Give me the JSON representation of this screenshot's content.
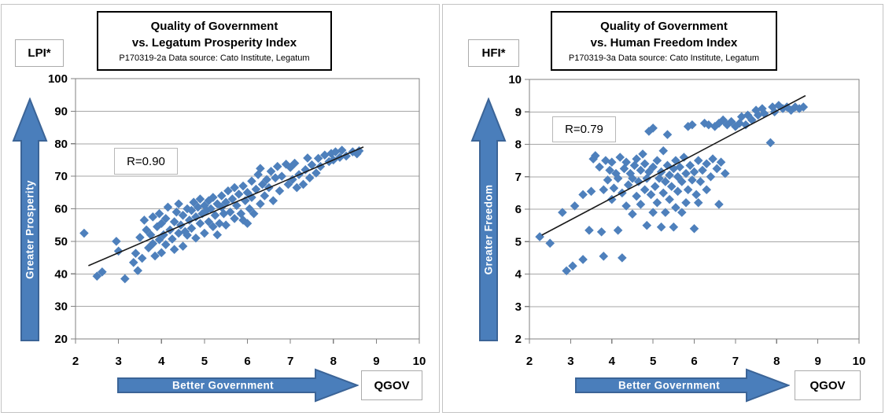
{
  "colors": {
    "marker": "#4E80BC",
    "trendline": "#1a1a1a",
    "gridline": "#a6a6a6",
    "plot_border": "#808080",
    "arrow_fill": "#4A7EBB",
    "arrow_border": "#3B6497",
    "arrow_text": "#ffffff"
  },
  "chart_data": [
    {
      "type": "scatter",
      "title": "Quality of Government vs. Legatum Prosperity Index",
      "title_line1": "Quality of Government",
      "title_line2": "vs. Legatum Prosperity Index",
      "subtitle": "P170319-2a Data source: Cato Institute, Legatum",
      "y_axis_unit_label": "LPI*",
      "x_axis_unit_label": "QGOV",
      "y_arrow_label": "Greater Prosperity",
      "x_arrow_label": "Better Government",
      "annotation": "R=0.90",
      "correlation": 0.9,
      "xlim": [
        2,
        10
      ],
      "ylim": [
        20,
        100
      ],
      "x_ticks": [
        2,
        3,
        4,
        5,
        6,
        7,
        8,
        9,
        10
      ],
      "y_ticks": [
        20,
        30,
        40,
        50,
        60,
        70,
        80,
        90,
        100
      ],
      "grid": "horizontal-only",
      "legend": "none",
      "trendline": {
        "x1": 2.3,
        "y1": 42.5,
        "x2": 8.7,
        "y2": 79.0
      },
      "points": [
        [
          2.2,
          52.5
        ],
        [
          2.5,
          39.3
        ],
        [
          2.62,
          40.6
        ],
        [
          2.95,
          50.0
        ],
        [
          3.0,
          47.0
        ],
        [
          3.15,
          38.5
        ],
        [
          3.35,
          43.5
        ],
        [
          3.4,
          46.3
        ],
        [
          3.45,
          41.0
        ],
        [
          3.5,
          51.2
        ],
        [
          3.55,
          44.8
        ],
        [
          3.6,
          56.5
        ],
        [
          3.65,
          53.5
        ],
        [
          3.7,
          48.0
        ],
        [
          3.75,
          52.0
        ],
        [
          3.8,
          49.3
        ],
        [
          3.8,
          57.5
        ],
        [
          3.85,
          45.5
        ],
        [
          3.9,
          54.5
        ],
        [
          3.95,
          50.5
        ],
        [
          3.95,
          58.5
        ],
        [
          4.0,
          46.5
        ],
        [
          4.0,
          55.5
        ],
        [
          4.05,
          52.0
        ],
        [
          4.1,
          49.0
        ],
        [
          4.1,
          57.0
        ],
        [
          4.15,
          60.5
        ],
        [
          4.2,
          53.5
        ],
        [
          4.25,
          50.7
        ],
        [
          4.3,
          47.5
        ],
        [
          4.3,
          56.0
        ],
        [
          4.35,
          59.0
        ],
        [
          4.4,
          52.5
        ],
        [
          4.4,
          61.5
        ],
        [
          4.45,
          55.0
        ],
        [
          4.5,
          48.5
        ],
        [
          4.5,
          58.0
        ],
        [
          4.55,
          53.0
        ],
        [
          4.6,
          51.9
        ],
        [
          4.6,
          60.0
        ],
        [
          4.65,
          56.5
        ],
        [
          4.7,
          54.0
        ],
        [
          4.7,
          59.5
        ],
        [
          4.75,
          62.0
        ],
        [
          4.8,
          51.0
        ],
        [
          4.8,
          57.5
        ],
        [
          4.85,
          60.5
        ],
        [
          4.9,
          55.5
        ],
        [
          4.9,
          63.0
        ],
        [
          4.95,
          58.5
        ],
        [
          5.0,
          52.5
        ],
        [
          5.0,
          61.0
        ],
        [
          5.05,
          59.5
        ],
        [
          5.1,
          56.0
        ],
        [
          5.1,
          62.5
        ],
        [
          5.15,
          60.0
        ],
        [
          5.2,
          54.5
        ],
        [
          5.2,
          63.5
        ],
        [
          5.25,
          58.0
        ],
        [
          5.3,
          52.0
        ],
        [
          5.3,
          61.5
        ],
        [
          5.35,
          55.5
        ],
        [
          5.4,
          60.5
        ],
        [
          5.4,
          64.0
        ],
        [
          5.45,
          58.5
        ],
        [
          5.5,
          55.0
        ],
        [
          5.5,
          62.0
        ],
        [
          5.55,
          65.5
        ],
        [
          5.6,
          59.0
        ],
        [
          5.65,
          63.0
        ],
        [
          5.7,
          57.0
        ],
        [
          5.7,
          66.5
        ],
        [
          5.75,
          61.0
        ],
        [
          5.8,
          64.5
        ],
        [
          5.85,
          58.5
        ],
        [
          5.9,
          56.5
        ],
        [
          5.9,
          67.0
        ],
        [
          5.95,
          62.5
        ],
        [
          6.0,
          55.5
        ],
        [
          6.0,
          65.0
        ],
        [
          6.05,
          60.0
        ],
        [
          6.1,
          63.5
        ],
        [
          6.1,
          68.5
        ],
        [
          6.15,
          58.5
        ],
        [
          6.2,
          66.0
        ],
        [
          6.25,
          70.5
        ],
        [
          6.3,
          61.5
        ],
        [
          6.3,
          72.4
        ],
        [
          6.35,
          67.5
        ],
        [
          6.4,
          64.0
        ],
        [
          6.45,
          69.0
        ],
        [
          6.5,
          66.5
        ],
        [
          6.55,
          71.5
        ],
        [
          6.6,
          62.5
        ],
        [
          6.65,
          69.5
        ],
        [
          6.7,
          73.0
        ],
        [
          6.75,
          65.5
        ],
        [
          6.8,
          70.0
        ],
        [
          6.9,
          73.7
        ],
        [
          6.95,
          67.5
        ],
        [
          7.0,
          72.7
        ],
        [
          7.05,
          69.0
        ],
        [
          7.1,
          74.0
        ],
        [
          7.15,
          66.5
        ],
        [
          7.2,
          70.5
        ],
        [
          7.3,
          67.5
        ],
        [
          7.35,
          72.0
        ],
        [
          7.4,
          75.6
        ],
        [
          7.45,
          69.5
        ],
        [
          7.5,
          73.5
        ],
        [
          7.6,
          71.0
        ],
        [
          7.65,
          75.5
        ],
        [
          7.7,
          73.0
        ],
        [
          7.8,
          76.5
        ],
        [
          7.9,
          74.5
        ],
        [
          7.95,
          77.0
        ],
        [
          8.0,
          75.0
        ],
        [
          8.05,
          77.5
        ],
        [
          8.15,
          75.8
        ],
        [
          8.2,
          78.0
        ],
        [
          8.3,
          76.2
        ],
        [
          8.45,
          77.5
        ],
        [
          8.55,
          76.9
        ],
        [
          8.6,
          77.8
        ]
      ]
    },
    {
      "type": "scatter",
      "title": "Quality of Government vs. Human Freedom Index",
      "title_line1": "Quality of Government",
      "title_line2": "vs. Human Freedom Index",
      "subtitle": "P170319-3a Data source: Cato Institute, Legatum",
      "y_axis_unit_label": "HFI*",
      "x_axis_unit_label": "QGOV",
      "y_arrow_label": "Greater Freedom",
      "x_arrow_label": "Better Government",
      "annotation": "R=0.79",
      "correlation": 0.79,
      "xlim": [
        2,
        10
      ],
      "ylim": [
        2,
        10
      ],
      "x_ticks": [
        2,
        3,
        4,
        5,
        6,
        7,
        8,
        9,
        10
      ],
      "y_ticks": [
        2,
        3,
        4,
        5,
        6,
        7,
        8,
        9,
        10
      ],
      "grid": "horizontal-only",
      "legend": "none",
      "trendline": {
        "x1": 2.3,
        "y1": 5.2,
        "x2": 8.7,
        "y2": 9.5
      },
      "points": [
        [
          2.25,
          5.15
        ],
        [
          2.5,
          4.95
        ],
        [
          2.8,
          5.9
        ],
        [
          2.9,
          4.1
        ],
        [
          3.05,
          4.25
        ],
        [
          3.1,
          6.1
        ],
        [
          3.3,
          4.45
        ],
        [
          3.3,
          6.45
        ],
        [
          3.45,
          5.35
        ],
        [
          3.5,
          6.55
        ],
        [
          3.55,
          7.55
        ],
        [
          3.6,
          7.65
        ],
        [
          3.7,
          7.3
        ],
        [
          3.75,
          5.3
        ],
        [
          3.8,
          4.55
        ],
        [
          3.8,
          6.6
        ],
        [
          3.85,
          7.5
        ],
        [
          3.9,
          6.9
        ],
        [
          3.95,
          7.2
        ],
        [
          4.0,
          6.3
        ],
        [
          4.0,
          7.45
        ],
        [
          4.05,
          6.65
        ],
        [
          4.1,
          7.1
        ],
        [
          4.15,
          5.35
        ],
        [
          4.15,
          6.95
        ],
        [
          4.2,
          7.6
        ],
        [
          4.25,
          4.5
        ],
        [
          4.25,
          6.5
        ],
        [
          4.3,
          7.25
        ],
        [
          4.35,
          6.1
        ],
        [
          4.35,
          7.45
        ],
        [
          4.4,
          6.75
        ],
        [
          4.45,
          7.1
        ],
        [
          4.5,
          5.85
        ],
        [
          4.5,
          6.95
        ],
        [
          4.55,
          7.35
        ],
        [
          4.6,
          6.4
        ],
        [
          4.6,
          7.55
        ],
        [
          4.65,
          6.85
        ],
        [
          4.7,
          6.15
        ],
        [
          4.7,
          7.2
        ],
        [
          4.75,
          7.7
        ],
        [
          4.8,
          6.6
        ],
        [
          4.8,
          7.4
        ],
        [
          4.85,
          5.5
        ],
        [
          4.85,
          6.95
        ],
        [
          4.9,
          7.15
        ],
        [
          4.9,
          8.4
        ],
        [
          4.95,
          6.45
        ],
        [
          5.0,
          5.9
        ],
        [
          5.0,
          7.3
        ],
        [
          5.0,
          8.5
        ],
        [
          5.05,
          6.7
        ],
        [
          5.1,
          6.2
        ],
        [
          5.1,
          7.5
        ],
        [
          5.15,
          6.95
        ],
        [
          5.2,
          5.45
        ],
        [
          5.2,
          7.15
        ],
        [
          5.25,
          6.5
        ],
        [
          5.25,
          7.8
        ],
        [
          5.3,
          5.9
        ],
        [
          5.3,
          6.85
        ],
        [
          5.35,
          7.35
        ],
        [
          5.35,
          8.3
        ],
        [
          5.4,
          6.3
        ],
        [
          5.4,
          7.05
        ],
        [
          5.45,
          6.7
        ],
        [
          5.5,
          5.45
        ],
        [
          5.5,
          7.25
        ],
        [
          5.55,
          6.05
        ],
        [
          5.55,
          7.5
        ],
        [
          5.6,
          6.55
        ],
        [
          5.6,
          7.0
        ],
        [
          5.65,
          7.3
        ],
        [
          5.7,
          5.9
        ],
        [
          5.7,
          6.85
        ],
        [
          5.75,
          7.6
        ],
        [
          5.8,
          6.2
        ],
        [
          5.8,
          7.1
        ],
        [
          5.85,
          6.6
        ],
        [
          5.85,
          8.55
        ],
        [
          5.9,
          7.35
        ],
        [
          5.95,
          6.9
        ],
        [
          5.95,
          8.6
        ],
        [
          6.0,
          5.4
        ],
        [
          6.0,
          7.15
        ],
        [
          6.05,
          6.45
        ],
        [
          6.1,
          6.2
        ],
        [
          6.1,
          7.5
        ],
        [
          6.15,
          6.85
        ],
        [
          6.2,
          7.2
        ],
        [
          6.25,
          8.65
        ],
        [
          6.3,
          6.6
        ],
        [
          6.3,
          7.4
        ],
        [
          6.35,
          8.6
        ],
        [
          6.4,
          7.0
        ],
        [
          6.45,
          7.55
        ],
        [
          6.5,
          8.55
        ],
        [
          6.55,
          7.25
        ],
        [
          6.6,
          6.15
        ],
        [
          6.6,
          8.65
        ],
        [
          6.65,
          7.45
        ],
        [
          6.7,
          8.75
        ],
        [
          6.75,
          7.1
        ],
        [
          6.8,
          8.6
        ],
        [
          6.9,
          8.7
        ],
        [
          7.0,
          8.55
        ],
        [
          7.1,
          8.65
        ],
        [
          7.15,
          8.85
        ],
        [
          7.25,
          8.6
        ],
        [
          7.3,
          8.9
        ],
        [
          7.4,
          8.75
        ],
        [
          7.5,
          9.05
        ],
        [
          7.55,
          8.9
        ],
        [
          7.65,
          9.1
        ],
        [
          7.7,
          8.95
        ],
        [
          7.85,
          8.05
        ],
        [
          7.9,
          9.15
        ],
        [
          7.95,
          9.0
        ],
        [
          8.05,
          9.2
        ],
        [
          8.15,
          9.1
        ],
        [
          8.25,
          9.15
        ],
        [
          8.35,
          9.05
        ],
        [
          8.45,
          9.15
        ],
        [
          8.55,
          9.1
        ],
        [
          8.65,
          9.15
        ]
      ]
    }
  ]
}
